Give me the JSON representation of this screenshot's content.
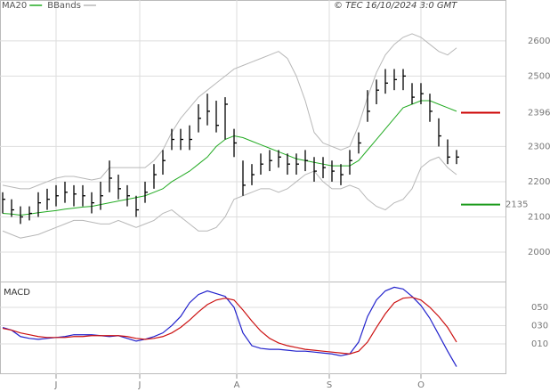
{
  "header": {
    "source": "© TEC 16/10/2024 3:0 GMT"
  },
  "chart_data": [
    {
      "type": "ohlc",
      "categories": [
        null,
        null,
        null,
        null,
        null,
        null,
        null,
        null,
        null,
        null,
        null,
        null,
        null,
        null,
        null,
        null,
        null,
        null,
        null,
        null,
        null,
        null,
        null,
        null,
        null,
        null,
        null,
        null,
        null,
        null,
        null,
        null,
        null,
        null,
        null,
        null,
        null,
        null,
        null,
        null,
        null,
        null,
        null,
        null,
        null,
        null,
        null,
        null,
        null,
        null,
        null,
        null
      ],
      "high": [
        2170,
        2150,
        2130,
        2130,
        2170,
        2180,
        2190,
        2200,
        2190,
        2190,
        2170,
        2200,
        2260,
        2220,
        2190,
        2160,
        2200,
        2250,
        2290,
        2350,
        2350,
        2360,
        2420,
        2450,
        2430,
        2440,
        2350,
        2260,
        2250,
        2280,
        2290,
        2290,
        2280,
        2280,
        2290,
        2270,
        2270,
        2260,
        2250,
        2290,
        2340,
        2460,
        2490,
        2520,
        2520,
        2520,
        2480,
        2480,
        2450,
        2380,
        2320,
        2290
      ],
      "low": [
        2110,
        2100,
        2080,
        2090,
        2100,
        2120,
        2130,
        2140,
        2130,
        2130,
        2110,
        2120,
        2170,
        2150,
        2130,
        2100,
        2140,
        2180,
        2220,
        2290,
        2290,
        2290,
        2340,
        2360,
        2340,
        2320,
        2270,
        2160,
        2190,
        2220,
        2230,
        2240,
        2220,
        2220,
        2230,
        2200,
        2210,
        2200,
        2190,
        2220,
        2280,
        2370,
        2420,
        2450,
        2460,
        2460,
        2420,
        2420,
        2370,
        2300,
        2250,
        2250
      ],
      "close": [
        2150,
        2120,
        2100,
        2110,
        2140,
        2150,
        2160,
        2170,
        2165,
        2160,
        2140,
        2160,
        2210,
        2180,
        2160,
        2120,
        2170,
        2220,
        2260,
        2320,
        2320,
        2320,
        2380,
        2400,
        2360,
        2420,
        2310,
        2190,
        2220,
        2250,
        2260,
        2270,
        2250,
        2250,
        2260,
        2230,
        2240,
        2230,
        2220,
        2260,
        2310,
        2400,
        2460,
        2480,
        2490,
        2500,
        2440,
        2450,
        2400,
        2330,
        2270,
        2270
      ],
      "color": "#000000",
      "series": [
        {
          "name": "MA20",
          "color": "#22aa22",
          "values": [
            2110,
            2108,
            2105,
            2108,
            2112,
            2115,
            2118,
            2122,
            2125,
            2128,
            2130,
            2135,
            2140,
            2145,
            2150,
            2155,
            2160,
            2170,
            2180,
            2200,
            2215,
            2230,
            2250,
            2270,
            2300,
            2320,
            2330,
            2325,
            2315,
            2305,
            2295,
            2285,
            2275,
            2265,
            2260,
            2255,
            2250,
            2245,
            2245,
            2245,
            2260,
            2290,
            2320,
            2350,
            2380,
            2410,
            2420,
            2430,
            2430,
            2420,
            2410,
            2400
          ]
        },
        {
          "name": "BBands",
          "color": "#b8b8b8",
          "values": [
            2190,
            2185,
            2180,
            2180,
            2190,
            2200,
            2210,
            2215,
            2215,
            2210,
            2205,
            2210,
            2240,
            2240,
            2240,
            2240,
            2240,
            2260,
            2290,
            2340,
            2380,
            2410,
            2440,
            2460,
            2480,
            2500,
            2520,
            2530,
            2540,
            2550,
            2560,
            2570,
            2550,
            2500,
            2430,
            2340,
            2310,
            2300,
            2290,
            2300,
            2360,
            2440,
            2510,
            2560,
            2590,
            2610,
            2620,
            2610,
            2590,
            2570,
            2560,
            2580
          ],
          "lower": [
            2060,
            2050,
            2040,
            2045,
            2050,
            2060,
            2070,
            2080,
            2090,
            2090,
            2085,
            2080,
            2080,
            2090,
            2080,
            2070,
            2080,
            2090,
            2110,
            2120,
            2100,
            2080,
            2060,
            2060,
            2070,
            2100,
            2150,
            2160,
            2170,
            2180,
            2180,
            2170,
            2180,
            2200,
            2220,
            2230,
            2200,
            2180,
            2180,
            2190,
            2180,
            2150,
            2130,
            2120,
            2140,
            2150,
            2180,
            2240,
            2260,
            2270,
            2240,
            2220
          ]
        }
      ],
      "levels": [
        {
          "value": 2396,
          "color": "#cc0000"
        },
        {
          "value": 2135,
          "color": "#1a9a1a"
        }
      ],
      "ylim": [
        1919,
        2716
      ],
      "yticks": [
        2000,
        2100,
        2200,
        2300,
        2500,
        2600
      ],
      "grid": true
    },
    {
      "type": "line",
      "title": "MACD",
      "categories": [
        null,
        null,
        null,
        null,
        null,
        null,
        null,
        null,
        null,
        null,
        null,
        null,
        null,
        null,
        null,
        null,
        null,
        null,
        null,
        null,
        null,
        null,
        null,
        null,
        null,
        null,
        null,
        null,
        null,
        null,
        null,
        null,
        null,
        null,
        null,
        null,
        null,
        null,
        null,
        null,
        null,
        null,
        null,
        null,
        null,
        null,
        null,
        null,
        null,
        null,
        null,
        null
      ],
      "series": [
        {
          "color": "#2222cc",
          "values": [
            0.28,
            0.25,
            0.18,
            0.16,
            0.15,
            0.16,
            0.17,
            0.18,
            0.2,
            0.2,
            0.2,
            0.19,
            0.18,
            0.19,
            0.16,
            0.13,
            0.15,
            0.18,
            0.22,
            0.3,
            0.4,
            0.55,
            0.64,
            0.68,
            0.65,
            0.62,
            0.5,
            0.22,
            0.08,
            0.05,
            0.04,
            0.04,
            0.03,
            0.02,
            0.02,
            0.01,
            0.0,
            -0.01,
            -0.03,
            -0.01,
            0.12,
            0.4,
            0.58,
            0.68,
            0.72,
            0.7,
            0.62,
            0.52,
            0.38,
            0.2,
            0.02,
            -0.15
          ]
        },
        {
          "color": "#cc1111",
          "values": [
            0.27,
            0.25,
            0.22,
            0.2,
            0.18,
            0.17,
            0.17,
            0.17,
            0.18,
            0.18,
            0.19,
            0.19,
            0.19,
            0.19,
            0.18,
            0.16,
            0.15,
            0.16,
            0.18,
            0.22,
            0.28,
            0.36,
            0.45,
            0.53,
            0.58,
            0.6,
            0.58,
            0.47,
            0.35,
            0.24,
            0.16,
            0.11,
            0.08,
            0.06,
            0.04,
            0.03,
            0.02,
            0.01,
            0.0,
            -0.01,
            0.02,
            0.12,
            0.28,
            0.43,
            0.55,
            0.6,
            0.61,
            0.58,
            0.5,
            0.4,
            0.28,
            0.12
          ]
        }
      ],
      "ylim": [
        -0.232,
        0.763
      ],
      "yticks": [
        {
          "value": 0.5,
          "label": "050"
        },
        {
          "value": 0.3,
          "label": "030"
        },
        {
          "value": 0.1,
          "label": "010"
        }
      ],
      "xticks": [
        {
          "value": 6,
          "label": "J"
        },
        {
          "value": 15.4,
          "label": "J"
        },
        {
          "value": 26.3,
          "label": "A"
        },
        {
          "value": 36.7,
          "label": "S"
        },
        {
          "value": 47,
          "label": "O"
        }
      ],
      "grid": true
    }
  ]
}
